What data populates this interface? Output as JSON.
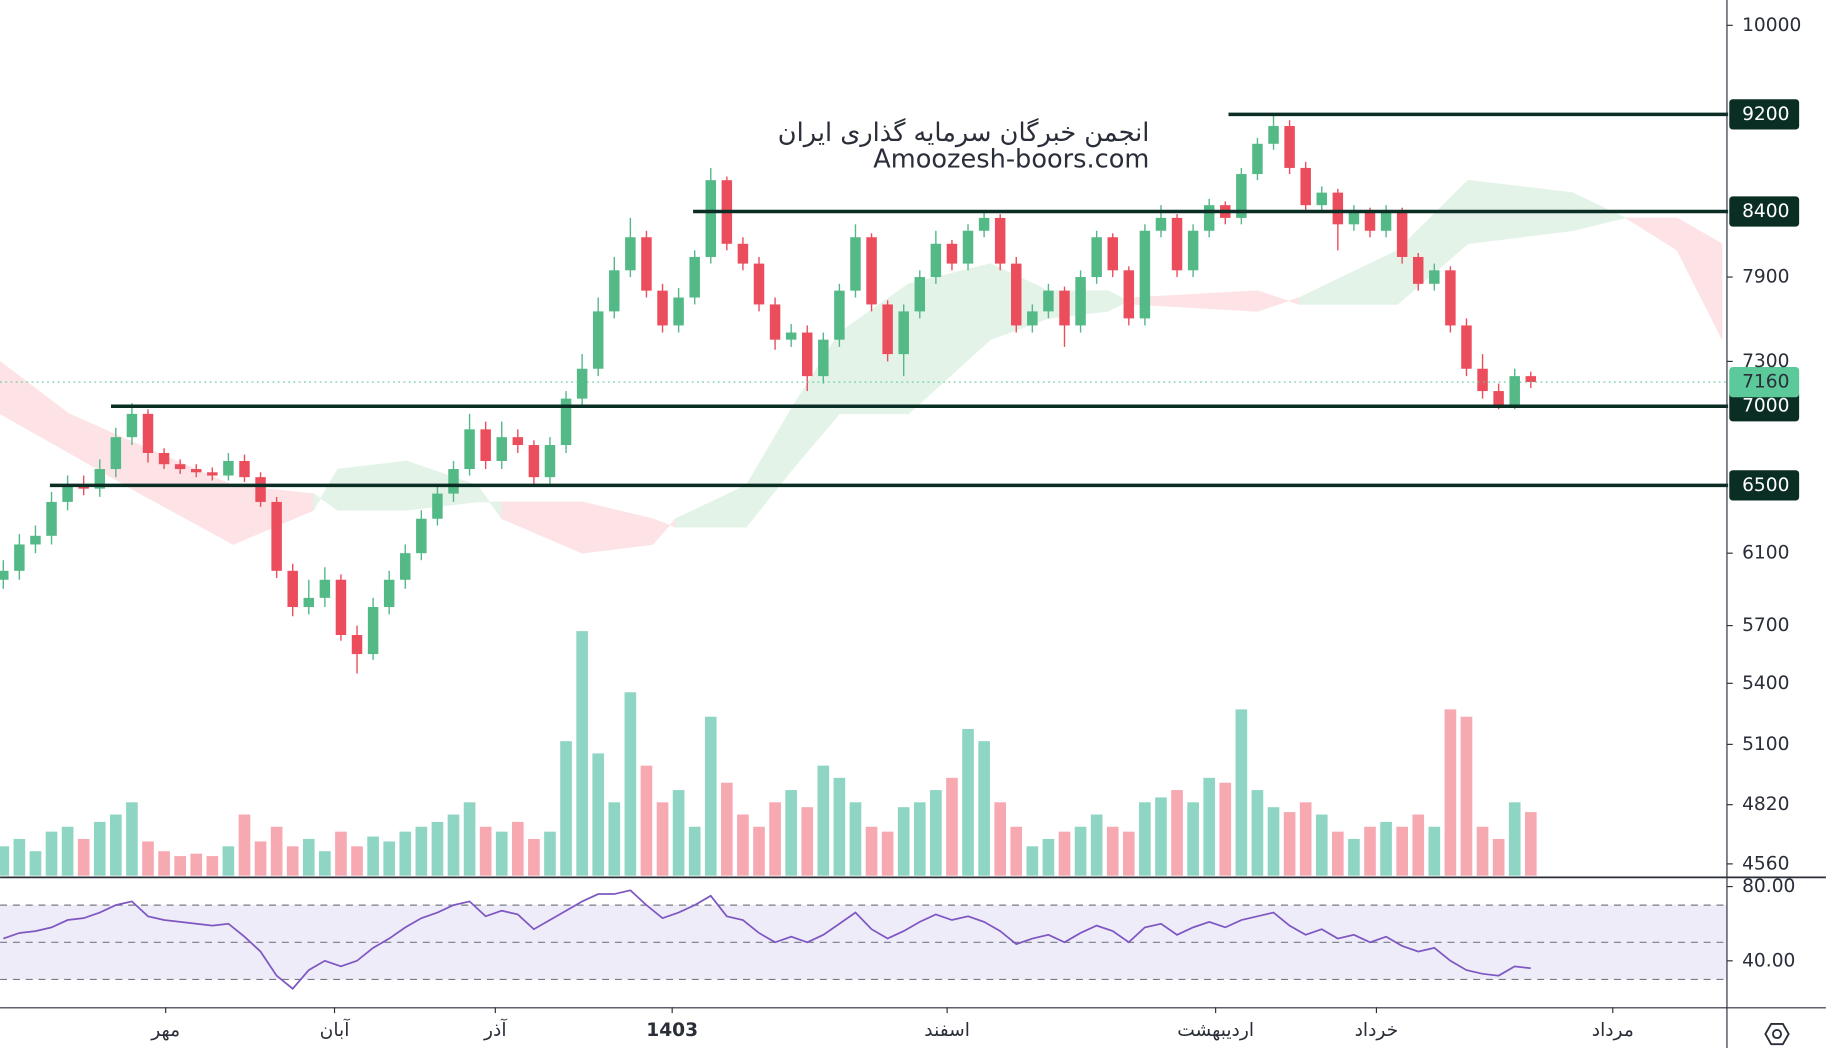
{
  "chart_data": {
    "type": "candlestick",
    "annotations": [
      "انجمن خبرگان سرمایه گذاری ایران",
      "Amoozesh-boors.com"
    ],
    "xlim": [
      -0.2,
      107.2
    ],
    "xticks": [
      {
        "value": 10.1,
        "label": "مهر"
      },
      {
        "value": 20.6,
        "label": "آبان"
      },
      {
        "value": 30.6,
        "label": "آذر"
      },
      {
        "value": 41.6,
        "label": "1403"
      },
      {
        "value": 58.7,
        "label": "اسفند"
      },
      {
        "value": 75.4,
        "label": "اردیبهشت"
      },
      {
        "value": 85.4,
        "label": "خرداد"
      },
      {
        "value": 100.1,
        "label": "مرداد"
      }
    ],
    "ylim": [
      4510,
      10240
    ],
    "log": true,
    "yticks": [
      10000,
      7900,
      7300,
      6100,
      5700,
      5400,
      5100,
      4820,
      4560
    ],
    "up_color": "#53b987",
    "down_color": "#eb4d5c",
    "volume_up_color": "#8fd5c4",
    "volume_down_color": "#f6a9b1",
    "open": [
      5950,
      6000,
      6150,
      6200,
      6400,
      6500,
      6480,
      6600,
      6800,
      6950,
      6700,
      6630,
      6600,
      6580,
      6560,
      6650,
      6550,
      6400,
      6000,
      5800,
      5850,
      5950,
      5650,
      5550,
      5800,
      5950,
      6100,
      6300,
      6450,
      6600,
      6850,
      6650,
      6800,
      6750,
      6550,
      6750,
      7050,
      7250,
      7650,
      7950,
      8200,
      7800,
      7550,
      7750,
      8050,
      8650,
      8150,
      8000,
      7700,
      7450,
      7500,
      7200,
      7450,
      7800,
      8200,
      7700,
      7350,
      7650,
      7900,
      8150,
      8000,
      8250,
      8350,
      8000,
      7550,
      7650,
      7800,
      7550,
      7900,
      8200,
      7950,
      7600,
      8250,
      8350,
      7950,
      8250,
      8450,
      8350,
      8700,
      8950,
      9100,
      8750,
      8450,
      8550,
      8300,
      8400,
      8250,
      8400,
      8050,
      7850,
      7950,
      7550,
      7250,
      7100,
      7000,
      7200
    ],
    "high": [
      6060,
      6210,
      6260,
      6460,
      6560,
      6560,
      6660,
      6860,
      7020,
      6980,
      6730,
      6660,
      6630,
      6610,
      6700,
      6690,
      6580,
      6430,
      6040,
      5950,
      6020,
      5980,
      5700,
      5850,
      6000,
      6150,
      6350,
      6500,
      6650,
      6950,
      6900,
      6900,
      6850,
      6780,
      6800,
      7100,
      7350,
      7750,
      8050,
      8350,
      8250,
      7850,
      7820,
      8100,
      8750,
      8680,
      8200,
      8050,
      7750,
      7560,
      7550,
      7500,
      7850,
      8300,
      8230,
      7730,
      7700,
      7950,
      8250,
      8180,
      8300,
      8400,
      8380,
      8050,
      7700,
      7850,
      7830,
      7950,
      8250,
      8230,
      7980,
      8300,
      8450,
      8380,
      8300,
      8500,
      8480,
      8750,
      9000,
      9200,
      9150,
      8800,
      8600,
      8580,
      8450,
      8430,
      8450,
      8430,
      8080,
      8000,
      7980,
      7600,
      7350,
      7150,
      7250,
      7230
    ],
    "low": [
      5900,
      5950,
      6100,
      6150,
      6350,
      6440,
      6430,
      6550,
      6750,
      6640,
      6600,
      6570,
      6550,
      6530,
      6530,
      6520,
      6370,
      5960,
      5750,
      5760,
      5800,
      5620,
      5450,
      5520,
      5760,
      5900,
      6060,
      6260,
      6400,
      6560,
      6600,
      6600,
      6700,
      6500,
      6500,
      6700,
      7000,
      7200,
      7600,
      7900,
      7750,
      7500,
      7500,
      7700,
      8000,
      8100,
      7950,
      7650,
      7380,
      7400,
      7100,
      7150,
      7400,
      7750,
      7650,
      7300,
      7200,
      7600,
      7850,
      7950,
      7950,
      8200,
      7950,
      7500,
      7500,
      7600,
      7400,
      7500,
      7850,
      7900,
      7550,
      7550,
      8200,
      7900,
      7900,
      8200,
      8300,
      8300,
      8650,
      8900,
      8700,
      8400,
      8400,
      8100,
      8250,
      8200,
      8200,
      8000,
      7800,
      7800,
      7500,
      7200,
      7050,
      6980,
      6980,
      7120
    ],
    "close": [
      6000,
      6150,
      6200,
      6400,
      6500,
      6480,
      6600,
      6800,
      6950,
      6700,
      6630,
      6600,
      6580,
      6560,
      6650,
      6550,
      6400,
      6000,
      5800,
      5850,
      5950,
      5650,
      5550,
      5800,
      5950,
      6100,
      6300,
      6450,
      6600,
      6850,
      6650,
      6800,
      6750,
      6550,
      6750,
      7050,
      7250,
      7650,
      7950,
      8200,
      7800,
      7550,
      7750,
      8050,
      8650,
      8150,
      8000,
      7700,
      7450,
      7500,
      7200,
      7450,
      7800,
      8200,
      7700,
      7350,
      7650,
      7900,
      8150,
      8000,
      8250,
      8350,
      8000,
      7550,
      7650,
      7800,
      7550,
      7900,
      8200,
      7950,
      7600,
      8250,
      8350,
      7950,
      8250,
      8450,
      8350,
      8700,
      8950,
      9100,
      8750,
      8450,
      8550,
      8300,
      8400,
      8250,
      8400,
      8050,
      7850,
      7950,
      7550,
      7250,
      7100,
      7000,
      7200,
      7160
    ],
    "volume": [
      12,
      15,
      10,
      18,
      20,
      15,
      22,
      25,
      30,
      14,
      10,
      8,
      9,
      8,
      12,
      25,
      14,
      20,
      12,
      15,
      10,
      18,
      12,
      16,
      14,
      18,
      20,
      22,
      25,
      30,
      20,
      18,
      22,
      15,
      18,
      55,
      100,
      50,
      30,
      75,
      45,
      30,
      35,
      20,
      65,
      38,
      25,
      20,
      30,
      35,
      28,
      45,
      40,
      30,
      20,
      18,
      28,
      30,
      35,
      40,
      60,
      55,
      30,
      20,
      12,
      15,
      18,
      20,
      25,
      20,
      18,
      30,
      32,
      35,
      30,
      40,
      38,
      68,
      35,
      28,
      26,
      30,
      25,
      18,
      15,
      20,
      22,
      20,
      25,
      20,
      68,
      65,
      20,
      15,
      30,
      26
    ],
    "vlim": [
      0,
      100
    ],
    "hlines": [
      {
        "value": 9200,
        "from": 76.2
      },
      {
        "value": 8400,
        "from": 42.9
      },
      {
        "value": 7000,
        "from": 6.7
      },
      {
        "value": 6500,
        "from": 2.9
      }
    ],
    "hline_color": "#0a2e24",
    "last_price": 7160,
    "last_color": "#5cc99a",
    "cloud": {
      "x": [
        -0.2,
        4.1,
        8.5,
        14.3,
        19.3,
        20.8,
        25.1,
        29.5,
        31.0,
        36.0,
        40.4,
        41.8,
        46.2,
        49.1,
        52.0,
        56.3,
        61.4,
        65.0,
        68.7,
        70.4,
        78.0,
        80.6,
        86.7,
        91.1,
        97.6,
        100.9,
        104.1,
        106.9
      ],
      "span_a": [
        6950,
        6700,
        6450,
        6150,
        6350,
        6600,
        6650,
        6500,
        6300,
        6100,
        6150,
        6300,
        6500,
        7000,
        7500,
        7850,
        8000,
        7800,
        7800,
        7700,
        7650,
        7750,
        8100,
        8650,
        8550,
        8350,
        8100,
        7450
      ],
      "span_b": [
        7300,
        6950,
        6750,
        6500,
        6450,
        6350,
        6350,
        6400,
        6400,
        6400,
        6300,
        6250,
        6250,
        6600,
        6950,
        6950,
        7450,
        7600,
        7650,
        7750,
        7800,
        7700,
        7700,
        8150,
        8250,
        8350,
        8350,
        8150
      ],
      "up_color": "#e4f3e7",
      "down_color": "#fde3e5"
    },
    "rsi": {
      "values": [
        52,
        55,
        56,
        58,
        62,
        63,
        66,
        70,
        72,
        64,
        62,
        61,
        60,
        59,
        60,
        53,
        45,
        32,
        25,
        35,
        40,
        37,
        40,
        47,
        52,
        58,
        63,
        66,
        70,
        72,
        64,
        67,
        65,
        57,
        62,
        67,
        72,
        76,
        76,
        78,
        70,
        63,
        66,
        70,
        75,
        64,
        62,
        55,
        50,
        53,
        50,
        54,
        60,
        66,
        57,
        52,
        56,
        61,
        65,
        62,
        64,
        61,
        56,
        49,
        52,
        54,
        50,
        55,
        59,
        56,
        50,
        58,
        60,
        54,
        58,
        61,
        58,
        62,
        64,
        66,
        59,
        54,
        57,
        52,
        54,
        50,
        53,
        48,
        45,
        47,
        40,
        35,
        33,
        32,
        37,
        36
      ],
      "ylim": [
        15,
        84
      ],
      "yticks": [
        {
          "value": 80,
          "label": "80.00"
        },
        {
          "value": 40,
          "label": "40.00"
        }
      ],
      "levels": [
        70,
        50,
        30
      ],
      "color": "#7e57c2",
      "band_color": "#efecf9"
    }
  }
}
